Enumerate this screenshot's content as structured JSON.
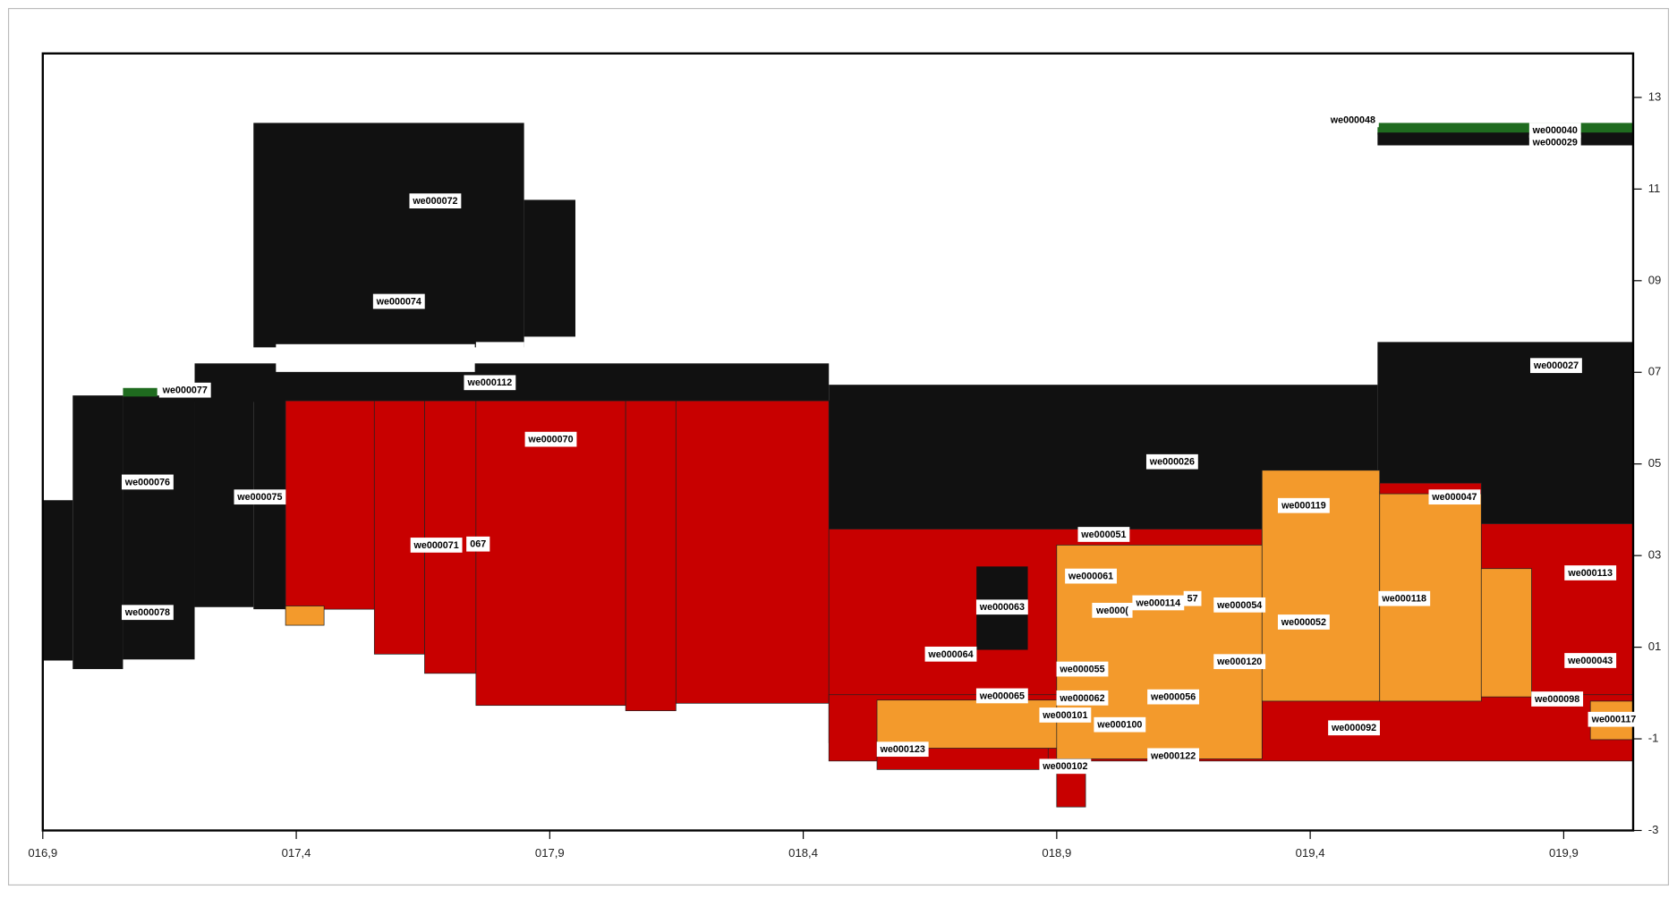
{
  "axes": {
    "xlim": [
      16.9,
      20.037
    ],
    "xticks": [
      {
        "value": 16.9,
        "label": "016,9"
      },
      {
        "value": 17.4,
        "label": "017,4"
      },
      {
        "value": 17.9,
        "label": "017,9"
      },
      {
        "value": 18.4,
        "label": "018,4"
      },
      {
        "value": 18.9,
        "label": "018,9"
      },
      {
        "value": 19.4,
        "label": "019,4"
      },
      {
        "value": 19.9,
        "label": "019,9"
      }
    ],
    "ylim": [
      -3,
      13.96
    ],
    "yticks": [
      13,
      11,
      {
        "value": 9,
        "label": "09"
      },
      {
        "value": 7,
        "label": "07"
      },
      {
        "value": 5,
        "label": "05"
      },
      {
        "value": 3,
        "label": "03"
      },
      {
        "value": 1,
        "label": "01"
      },
      -1,
      -3
    ]
  },
  "labels": [
    "we000072",
    "we000074",
    "we000077",
    "we000112",
    "we000070",
    "we000076",
    "we000075",
    "we000071",
    "067",
    "we000078",
    "we000026",
    "we000027",
    "we000048",
    "we000040",
    "we000029",
    "we000051",
    "we000061",
    "we000063",
    "we000(",
    "we000114",
    "57",
    "we000054",
    "we000119",
    "we000047",
    "we000113",
    "we000052",
    "we000118",
    "we000064",
    "we000120",
    "we000055",
    "we000043",
    "we000065",
    "we000062",
    "we000056",
    "we000098",
    "we000101",
    "we000100",
    "we000092",
    "we000117",
    "we000123",
    "we000122",
    "we000102"
  ]
}
